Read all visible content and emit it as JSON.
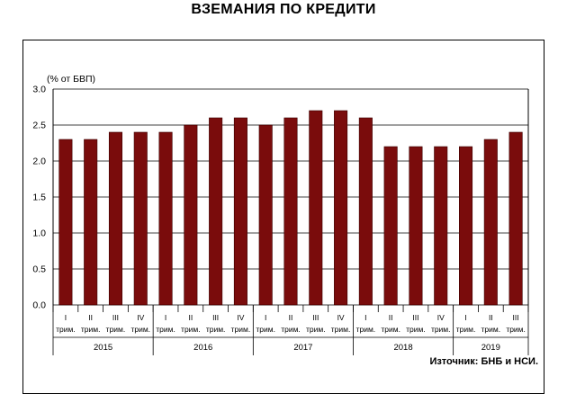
{
  "title": "ВЗЕМАНИЯ ПО КРЕДИТИ",
  "source": "Източник: БНБ и НСИ.",
  "colors": {
    "bar": "#7a0c0c",
    "bar_stroke": "#3a0000",
    "grid": "#000000"
  },
  "chart_data": {
    "type": "bar",
    "ylabel": "(% от БВП)",
    "xlabel": "",
    "ylim": [
      0,
      3.0
    ],
    "yticks": [
      "0.0",
      "0.5",
      "1.0",
      "1.5",
      "2.0",
      "2.5",
      "3.0"
    ],
    "grid": true,
    "quarter_labels": [
      "I\nтрим.",
      "II\nтрим.",
      "III\nтрим.",
      "IV\nтрим.",
      "I\nтрим.",
      "II\nтрим.",
      "III\nтрим.",
      "IV\nтрим.",
      "I\nтрим.",
      "II\nтрим.",
      "III\nтрим.",
      "IV\nтрим.",
      "I\nтрим.",
      "II\nтрим.",
      "III\nтрим.",
      "IV\nтрим.",
      "I\nтрим.",
      "II\nтрим.",
      "III\nтрим."
    ],
    "years": [
      {
        "label": "2015",
        "count": 4
      },
      {
        "label": "2016",
        "count": 4
      },
      {
        "label": "2017",
        "count": 4
      },
      {
        "label": "2018",
        "count": 4
      },
      {
        "label": "2019",
        "count": 3
      }
    ],
    "values": [
      2.3,
      2.3,
      2.4,
      2.4,
      2.4,
      2.5,
      2.6,
      2.6,
      2.5,
      2.6,
      2.7,
      2.7,
      2.6,
      2.2,
      2.2,
      2.2,
      2.2,
      2.3,
      2.4
    ]
  }
}
